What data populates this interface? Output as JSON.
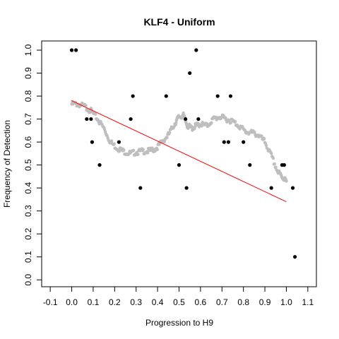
{
  "chart_data": {
    "type": "scatter",
    "title": "KLF4 - Uniform",
    "xlabel": "Progression to H9",
    "ylabel": "Frequency of Detection",
    "xlim": [
      -0.14,
      1.14
    ],
    "ylim": [
      -0.03,
      1.04
    ],
    "grid": false,
    "legend": "none",
    "x_ticks": [
      -0.1,
      0.0,
      0.1,
      0.2,
      0.3,
      0.4,
      0.5,
      0.6,
      0.7,
      0.8,
      0.9,
      1.0,
      1.1
    ],
    "x_tick_labels": [
      "-0.1",
      "0.0",
      "0.1",
      "0.2",
      "0.3",
      "0.4",
      "0.5",
      "0.6",
      "0.7",
      "0.8",
      "0.9",
      "1.0",
      "1.1"
    ],
    "y_ticks": [
      0.0,
      0.1,
      0.2,
      0.3,
      0.4,
      0.5,
      0.6,
      0.7,
      0.8,
      0.9,
      1.0
    ],
    "y_tick_labels": [
      "0.0",
      "0.1",
      "0.2",
      "0.3",
      "0.4",
      "0.5",
      "0.6",
      "0.7",
      "0.8",
      "0.9",
      "1.0"
    ],
    "series": [
      {
        "kind": "points",
        "color": "#000000",
        "x": [
          0.0,
          0.02,
          0.07,
          0.09,
          0.095,
          0.13,
          0.22,
          0.275,
          0.285,
          0.32,
          0.44,
          0.5,
          0.53,
          0.535,
          0.55,
          0.58,
          0.59,
          0.68,
          0.71,
          0.73,
          0.74,
          0.8,
          0.83,
          0.93,
          0.98,
          0.99,
          1.03,
          1.04
        ],
        "y": [
          1.0,
          1.0,
          0.7,
          0.7,
          0.6,
          0.5,
          0.6,
          0.7,
          0.8,
          0.4,
          0.8,
          0.5,
          0.7,
          0.4,
          0.9,
          1.0,
          0.7,
          0.8,
          0.6,
          0.6,
          0.8,
          0.6,
          0.5,
          0.4,
          0.5,
          0.5,
          0.4,
          0.1
        ]
      },
      {
        "kind": "smooth",
        "color": "#bebebe",
        "x": [
          0.0,
          0.03,
          0.06,
          0.09,
          0.12,
          0.15,
          0.18,
          0.21,
          0.24,
          0.27,
          0.3,
          0.33,
          0.36,
          0.39,
          0.42,
          0.45,
          0.48,
          0.5,
          0.52,
          0.54,
          0.56,
          0.58,
          0.6,
          0.63,
          0.66,
          0.69,
          0.72,
          0.75,
          0.78,
          0.81,
          0.84,
          0.87,
          0.9,
          0.93,
          0.96,
          0.98,
          1.0
        ],
        "y": [
          0.765,
          0.765,
          0.755,
          0.735,
          0.7,
          0.66,
          0.6,
          0.575,
          0.56,
          0.55,
          0.555,
          0.56,
          0.56,
          0.57,
          0.6,
          0.63,
          0.68,
          0.71,
          0.715,
          0.67,
          0.66,
          0.67,
          0.68,
          0.67,
          0.7,
          0.71,
          0.7,
          0.69,
          0.67,
          0.645,
          0.64,
          0.63,
          0.6,
          0.54,
          0.47,
          0.45,
          0.43
        ]
      },
      {
        "kind": "line",
        "color": "#ff0000",
        "x": [
          0.0,
          1.0
        ],
        "y": [
          0.78,
          0.34
        ]
      }
    ]
  }
}
